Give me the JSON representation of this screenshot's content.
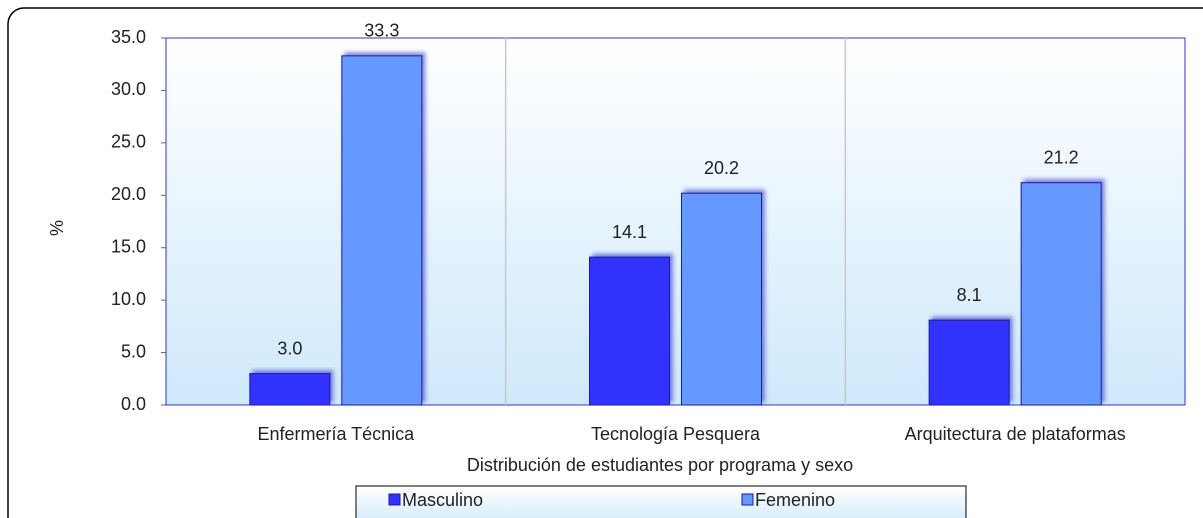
{
  "chart_data": {
    "type": "bar",
    "categories": [
      "Enfermería Técnica",
      "Tecnología Pesquera",
      "Arquitectura de plataformas"
    ],
    "series": [
      {
        "name": "Masculino",
        "color": "#3333ff",
        "values": [
          3.0,
          14.1,
          8.1
        ],
        "value_labels": [
          "3.0",
          "14.1",
          "8.1"
        ]
      },
      {
        "name": "Femenino",
        "color": "#6699ff",
        "values": [
          33.3,
          20.2,
          21.2
        ],
        "value_labels": [
          "33.3",
          "20.2",
          "21.2"
        ]
      }
    ],
    "xlabel": "Distribución de estudiantes por programa y sexo",
    "ylabel": "%",
    "ylim": [
      0,
      35
    ],
    "yticks": [
      {
        "value": 0,
        "label": "0.0"
      },
      {
        "value": 5,
        "label": "5.0"
      },
      {
        "value": 10,
        "label": "10.0"
      },
      {
        "value": 15,
        "label": "15.0"
      },
      {
        "value": 20,
        "label": "20.0"
      },
      {
        "value": 25,
        "label": "25.0"
      },
      {
        "value": 30,
        "label": "30.0"
      },
      {
        "value": 35,
        "label": "35.0"
      }
    ],
    "legend": "bottom"
  }
}
